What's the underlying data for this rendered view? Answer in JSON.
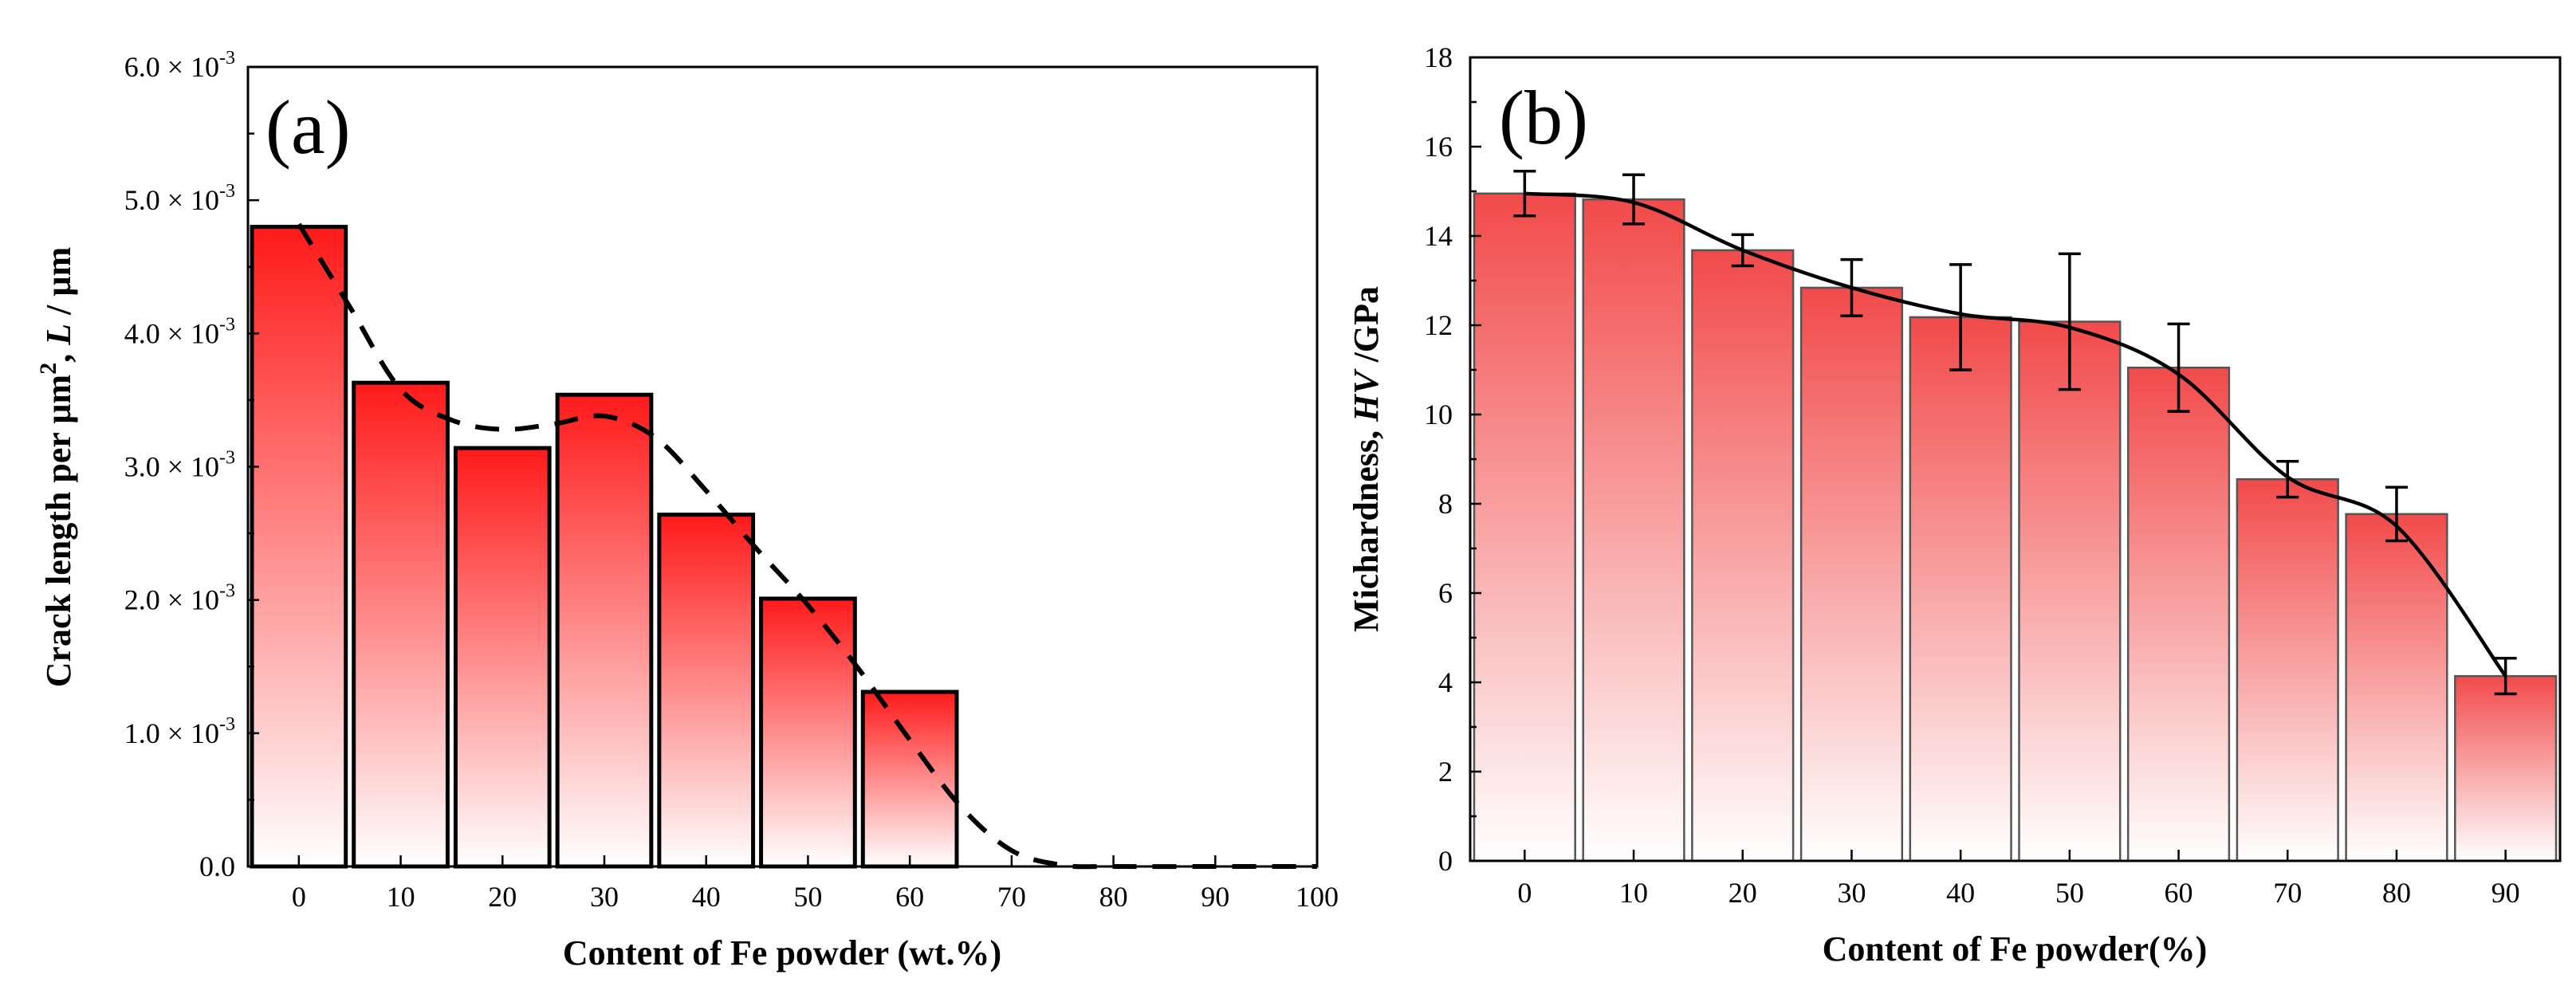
{
  "chart_data": [
    {
      "type": "bar",
      "panel": "(a)",
      "title": "",
      "xlabel": "Content of Fe powder (wt.%)",
      "ylabel_parts": [
        "Crack length per µm",
        "2",
        ", ",
        "L",
        " / µm"
      ],
      "categories": [
        "0",
        "10",
        "20",
        "30",
        "40",
        "50",
        "60",
        "70",
        "80",
        "90",
        "100"
      ],
      "values": [
        0.0048,
        0.00363,
        0.00314,
        0.00354,
        0.00264,
        0.00201,
        0.00131,
        0,
        0,
        0,
        0
      ],
      "xlim": [
        -5,
        100
      ],
      "ylim": [
        0,
        0.006
      ],
      "yticks": [
        0,
        0.001,
        0.002,
        0.003,
        0.004,
        0.005,
        0.006
      ],
      "ytick_labels": [
        {
          "mantissa": "0.0",
          "times": "",
          "base": "",
          "exp": ""
        },
        {
          "mantissa": "1.0",
          "times": "×",
          "base": "10",
          "exp": "-3"
        },
        {
          "mantissa": "2.0",
          "times": "×",
          "base": "10",
          "exp": "-3"
        },
        {
          "mantissa": "3.0",
          "times": "×",
          "base": "10",
          "exp": "-3"
        },
        {
          "mantissa": "4.0",
          "times": "×",
          "base": "10",
          "exp": "-3"
        },
        {
          "mantissa": "5.0",
          "times": "×",
          "base": "10",
          "exp": "-3"
        },
        {
          "mantissa": "6.0",
          "times": "×",
          "base": "10",
          "exp": "-3"
        }
      ],
      "trend": {
        "style": "dashed",
        "x": [
          0,
          5,
          10,
          15,
          20,
          25,
          30,
          35,
          40,
          45,
          50,
          55,
          60,
          65,
          70,
          75,
          80,
          90,
          100
        ],
        "y": [
          0.00482,
          0.0042,
          0.00358,
          0.00335,
          0.00328,
          0.00332,
          0.00338,
          0.00322,
          0.00282,
          0.00238,
          0.00196,
          0.00148,
          0.00095,
          0.00045,
          0.00012,
          1e-05,
          0,
          0,
          0
        ]
      },
      "bar_color_top": "#ff1a1a",
      "bar_color_bottom": "#ffffff"
    },
    {
      "type": "bar",
      "panel": "(b)",
      "title": "",
      "xlabel": "Content of Fe powder(%)",
      "ylabel_parts": [
        "Michardness, ",
        "HV",
        " /GPa"
      ],
      "categories": [
        "0",
        "10",
        "20",
        "30",
        "40",
        "50",
        "60",
        "70",
        "80",
        "90"
      ],
      "values": [
        14.95,
        14.82,
        13.68,
        12.84,
        12.18,
        12.08,
        11.05,
        8.55,
        7.77,
        4.14
      ],
      "errors": [
        0.5,
        0.55,
        0.35,
        0.63,
        1.18,
        1.52,
        0.98,
        0.4,
        0.6,
        0.4
      ],
      "xlim": [
        -5,
        95
      ],
      "ylim": [
        0,
        18
      ],
      "yticks": [
        0,
        2,
        4,
        6,
        8,
        10,
        12,
        14,
        16,
        18
      ],
      "trend": {
        "style": "solid",
        "x": [
          0,
          10,
          20,
          30,
          40,
          50,
          60,
          70,
          80,
          90
        ],
        "y": [
          14.95,
          14.75,
          13.68,
          12.84,
          12.25,
          11.95,
          10.9,
          8.6,
          7.5,
          4.14
        ]
      },
      "bar_color_top": "#f24a4a",
      "bar_color_bottom": "#ffffff"
    }
  ]
}
